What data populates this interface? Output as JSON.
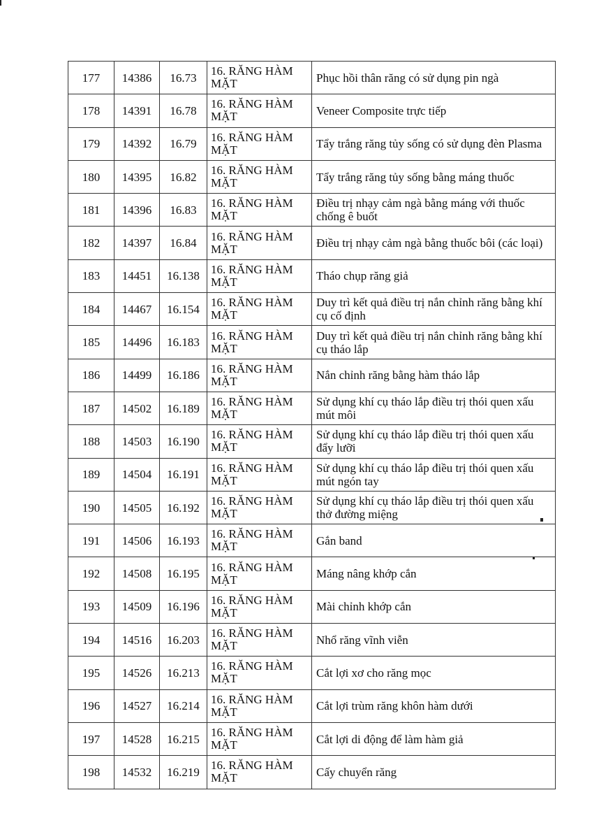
{
  "rows": [
    {
      "stt": "177",
      "code": "14386",
      "ref": "16.73",
      "group": "16. RĂNG HÀM MẶT",
      "name": "Phục hồi thân răng có sử dụng pin ngà"
    },
    {
      "stt": "178",
      "code": "14391",
      "ref": "16.78",
      "group": "16. RĂNG HÀM MẶT",
      "name": "Veneer Composite trực tiếp"
    },
    {
      "stt": "179",
      "code": "14392",
      "ref": "16.79",
      "group": "16. RĂNG HÀM MẶT",
      "name": "Tẩy trắng răng tủy sống có sử dụng đèn Plasma"
    },
    {
      "stt": "180",
      "code": "14395",
      "ref": "16.82",
      "group": "16. RĂNG HÀM MẶT",
      "name": "Tẩy trắng răng tủy sống bằng máng thuốc"
    },
    {
      "stt": "181",
      "code": "14396",
      "ref": "16.83",
      "group": "16. RĂNG HÀM MẶT",
      "name": "Điều trị nhạy cảm ngà bằng máng với thuốc chống ê buốt"
    },
    {
      "stt": "182",
      "code": "14397",
      "ref": "16.84",
      "group": "16. RĂNG HÀM MẶT",
      "name": "Điều trị nhạy cảm ngà bằng thuốc bôi (các loại)"
    },
    {
      "stt": "183",
      "code": "14451",
      "ref": "16.138",
      "group": "16. RĂNG HÀM MẶT",
      "name": "Tháo chụp răng giả"
    },
    {
      "stt": "184",
      "code": "14467",
      "ref": "16.154",
      "group": "16. RĂNG HÀM MẶT",
      "name": "Duy trì kết quả điều trị nắn chỉnh răng bằng khí cụ cố định"
    },
    {
      "stt": "185",
      "code": "14496",
      "ref": "16.183",
      "group": "16. RĂNG HÀM MẶT",
      "name": "Duy trì kết quả điều trị nắn chỉnh răng bằng khí cụ tháo lắp"
    },
    {
      "stt": "186",
      "code": "14499",
      "ref": "16.186",
      "group": "16. RĂNG HÀM MẶT",
      "name": "Nắn chỉnh răng bằng hàm tháo lắp"
    },
    {
      "stt": "187",
      "code": "14502",
      "ref": "16.189",
      "group": "16. RĂNG HÀM MẶT",
      "name": "Sử dụng khí cụ tháo lắp điều trị thói quen xấu mút môi"
    },
    {
      "stt": "188",
      "code": "14503",
      "ref": "16.190",
      "group": "16. RĂNG HÀM MẶT",
      "name": "Sử dụng khí cụ tháo lắp điều trị thói quen xấu đẩy lưỡi"
    },
    {
      "stt": "189",
      "code": "14504",
      "ref": "16.191",
      "group": "16. RĂNG HÀM MẶT",
      "name": "Sử dụng khí cụ tháo lắp điều trị thói quen xấu mút ngón tay"
    },
    {
      "stt": "190",
      "code": "14505",
      "ref": "16.192",
      "group": "16. RĂNG HÀM MẶT",
      "name": "Sử dụng khí cụ tháo lắp điều trị thói quen xấu thở đường miệng"
    },
    {
      "stt": "191",
      "code": "14506",
      "ref": "16.193",
      "group": "16. RĂNG HÀM MẶT",
      "name": "Gắn band"
    },
    {
      "stt": "192",
      "code": "14508",
      "ref": "16.195",
      "group": "16. RĂNG HÀM MẶT",
      "name": "Máng nâng khớp cắn"
    },
    {
      "stt": "193",
      "code": "14509",
      "ref": "16.196",
      "group": "16. RĂNG HÀM MẶT",
      "name": "Mài chỉnh khớp cắn"
    },
    {
      "stt": "194",
      "code": "14516",
      "ref": "16.203",
      "group": "16. RĂNG HÀM MẶT",
      "name": "Nhổ răng vĩnh viễn"
    },
    {
      "stt": "195",
      "code": "14526",
      "ref": "16.213",
      "group": "16. RĂNG HÀM MẶT",
      "name": "Cắt lợi xơ cho răng mọc"
    },
    {
      "stt": "196",
      "code": "14527",
      "ref": "16.214",
      "group": "16. RĂNG HÀM MẶT",
      "name": "Cắt lợi trùm răng khôn hàm dưới"
    },
    {
      "stt": "197",
      "code": "14528",
      "ref": "16.215",
      "group": "16. RĂNG HÀM MẶT",
      "name": "Cắt lợi di động để làm hàm giả"
    },
    {
      "stt": "198",
      "code": "14532",
      "ref": "16.219",
      "group": "16. RĂNG HÀM MẶT",
      "name": "Cấy chuyển răng"
    }
  ]
}
